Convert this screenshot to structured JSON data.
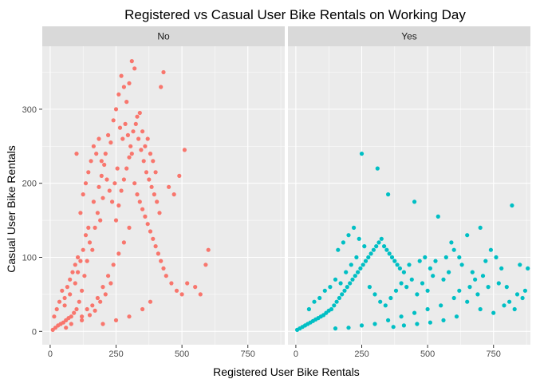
{
  "chart_data": {
    "type": "scatter",
    "title": "Registered vs Casual User Bike Rentals on Working Day",
    "xlabel": "Registered User Bike Rentals",
    "ylabel": "Casual User Bike Rentals",
    "facet_variable": "workingday",
    "xlim": [
      -30,
      890
    ],
    "ylim": [
      -18,
      385
    ],
    "x_ticks": [
      0,
      250,
      500,
      750
    ],
    "y_ticks": [
      0,
      100,
      200,
      300
    ],
    "grid": true,
    "legend": "none",
    "panels": [
      {
        "label": "No",
        "color": "#F8766D",
        "points": [
          [
            10,
            2
          ],
          [
            20,
            5
          ],
          [
            30,
            8
          ],
          [
            40,
            10
          ],
          [
            50,
            12
          ],
          [
            60,
            15
          ],
          [
            70,
            18
          ],
          [
            80,
            20
          ],
          [
            90,
            25
          ],
          [
            100,
            30
          ],
          [
            15,
            20
          ],
          [
            25,
            30
          ],
          [
            35,
            40
          ],
          [
            45,
            55
          ],
          [
            55,
            45
          ],
          [
            65,
            60
          ],
          [
            75,
            70
          ],
          [
            85,
            80
          ],
          [
            95,
            90
          ],
          [
            105,
            100
          ],
          [
            110,
            40
          ],
          [
            120,
            55
          ],
          [
            130,
            75
          ],
          [
            140,
            95
          ],
          [
            150,
            120
          ],
          [
            160,
            110
          ],
          [
            170,
            140
          ],
          [
            180,
            160
          ],
          [
            190,
            150
          ],
          [
            200,
            180
          ],
          [
            115,
            160
          ],
          [
            125,
            185
          ],
          [
            135,
            200
          ],
          [
            145,
            215
          ],
          [
            155,
            230
          ],
          [
            165,
            250
          ],
          [
            175,
            240
          ],
          [
            185,
            260
          ],
          [
            195,
            210
          ],
          [
            205,
            225
          ],
          [
            210,
            240
          ],
          [
            220,
            265
          ],
          [
            230,
            255
          ],
          [
            240,
            285
          ],
          [
            250,
            300
          ],
          [
            260,
            320
          ],
          [
            270,
            345
          ],
          [
            280,
            330
          ],
          [
            290,
            310
          ],
          [
            300,
            335
          ],
          [
            310,
            365
          ],
          [
            320,
            355
          ],
          [
            330,
            290
          ],
          [
            340,
            295
          ],
          [
            350,
            270
          ],
          [
            360,
            250
          ],
          [
            370,
            260
          ],
          [
            380,
            240
          ],
          [
            390,
            230
          ],
          [
            400,
            215
          ],
          [
            250,
            150
          ],
          [
            260,
            170
          ],
          [
            270,
            190
          ],
          [
            280,
            205
          ],
          [
            290,
            220
          ],
          [
            300,
            235
          ],
          [
            310,
            240
          ],
          [
            320,
            200
          ],
          [
            330,
            185
          ],
          [
            340,
            175
          ],
          [
            350,
            165
          ],
          [
            360,
            155
          ],
          [
            370,
            145
          ],
          [
            380,
            135
          ],
          [
            390,
            125
          ],
          [
            400,
            115
          ],
          [
            410,
            105
          ],
          [
            420,
            95
          ],
          [
            430,
            85
          ],
          [
            440,
            75
          ],
          [
            460,
            65
          ],
          [
            480,
            55
          ],
          [
            500,
            50
          ],
          [
            520,
            65
          ],
          [
            550,
            60
          ],
          [
            570,
            50
          ],
          [
            590,
            90
          ],
          [
            600,
            110
          ],
          [
            490,
            210
          ],
          [
            510,
            245
          ],
          [
            450,
            195
          ],
          [
            470,
            185
          ],
          [
            430,
            350
          ],
          [
            420,
            330
          ],
          [
            160,
            35
          ],
          [
            180,
            45
          ],
          [
            200,
            60
          ],
          [
            220,
            75
          ],
          [
            240,
            90
          ],
          [
            260,
            105
          ],
          [
            280,
            120
          ],
          [
            300,
            140
          ],
          [
            120,
            20
          ],
          [
            140,
            30
          ],
          [
            200,
            10
          ],
          [
            250,
            15
          ],
          [
            300,
            20
          ],
          [
            350,
            30
          ],
          [
            380,
            40
          ],
          [
            100,
            240
          ],
          [
            60,
            5
          ],
          [
            80,
            10
          ],
          [
            120,
            15
          ],
          [
            150,
            22
          ],
          [
            170,
            28
          ],
          [
            190,
            40
          ],
          [
            210,
            50
          ],
          [
            230,
            65
          ],
          [
            55,
            35
          ],
          [
            75,
            50
          ],
          [
            95,
            65
          ],
          [
            105,
            80
          ],
          [
            115,
            95
          ],
          [
            125,
            110
          ],
          [
            135,
            130
          ],
          [
            145,
            140
          ],
          [
            165,
            175
          ],
          [
            185,
            195
          ],
          [
            195,
            230
          ],
          [
            215,
            205
          ],
          [
            225,
            190
          ],
          [
            235,
            175
          ],
          [
            245,
            200
          ],
          [
            255,
            220
          ],
          [
            265,
            275
          ],
          [
            275,
            260
          ],
          [
            285,
            280
          ],
          [
            295,
            265
          ],
          [
            305,
            250
          ],
          [
            315,
            270
          ],
          [
            325,
            280
          ],
          [
            335,
            260
          ],
          [
            345,
            245
          ],
          [
            355,
            230
          ],
          [
            365,
            215
          ],
          [
            375,
            205
          ],
          [
            385,
            195
          ],
          [
            395,
            185
          ],
          [
            405,
            175
          ],
          [
            415,
            160
          ]
        ]
      },
      {
        "label": "Yes",
        "color": "#00BFC4",
        "points": [
          [
            5,
            2
          ],
          [
            15,
            4
          ],
          [
            25,
            6
          ],
          [
            35,
            8
          ],
          [
            45,
            10
          ],
          [
            55,
            12
          ],
          [
            65,
            14
          ],
          [
            75,
            16
          ],
          [
            85,
            18
          ],
          [
            95,
            20
          ],
          [
            105,
            22
          ],
          [
            115,
            25
          ],
          [
            125,
            28
          ],
          [
            135,
            30
          ],
          [
            145,
            35
          ],
          [
            155,
            40
          ],
          [
            165,
            45
          ],
          [
            175,
            50
          ],
          [
            185,
            55
          ],
          [
            195,
            60
          ],
          [
            205,
            65
          ],
          [
            215,
            70
          ],
          [
            225,
            75
          ],
          [
            235,
            80
          ],
          [
            245,
            85
          ],
          [
            255,
            90
          ],
          [
            265,
            95
          ],
          [
            275,
            100
          ],
          [
            285,
            105
          ],
          [
            295,
            110
          ],
          [
            305,
            115
          ],
          [
            315,
            120
          ],
          [
            325,
            125
          ],
          [
            335,
            115
          ],
          [
            345,
            110
          ],
          [
            355,
            105
          ],
          [
            365,
            100
          ],
          [
            375,
            95
          ],
          [
            385,
            90
          ],
          [
            395,
            85
          ],
          [
            250,
            240
          ],
          [
            310,
            220
          ],
          [
            350,
            185
          ],
          [
            450,
            175
          ],
          [
            540,
            155
          ],
          [
            600,
            110
          ],
          [
            620,
            100
          ],
          [
            650,
            130
          ],
          [
            700,
            140
          ],
          [
            720,
            95
          ],
          [
            740,
            110
          ],
          [
            760,
            100
          ],
          [
            780,
            85
          ],
          [
            800,
            60
          ],
          [
            820,
            170
          ],
          [
            850,
            90
          ],
          [
            880,
            85
          ],
          [
            750,
            25
          ],
          [
            700,
            30
          ],
          [
            650,
            40
          ],
          [
            600,
            45
          ],
          [
            550,
            35
          ],
          [
            500,
            30
          ],
          [
            450,
            25
          ],
          [
            400,
            20
          ],
          [
            350,
            15
          ],
          [
            300,
            10
          ],
          [
            250,
            8
          ],
          [
            200,
            5
          ],
          [
            150,
            4
          ],
          [
            420,
            60
          ],
          [
            440,
            70
          ],
          [
            460,
            50
          ],
          [
            480,
            65
          ],
          [
            500,
            55
          ],
          [
            520,
            75
          ],
          [
            560,
            70
          ],
          [
            580,
            80
          ],
          [
            620,
            55
          ],
          [
            660,
            60
          ],
          [
            680,
            70
          ],
          [
            710,
            75
          ],
          [
            730,
            60
          ],
          [
            770,
            65
          ],
          [
            790,
            35
          ],
          [
            810,
            40
          ],
          [
            830,
            30
          ],
          [
            840,
            50
          ],
          [
            860,
            45
          ],
          [
            870,
            55
          ],
          [
            50,
            30
          ],
          [
            70,
            40
          ],
          [
            90,
            45
          ],
          [
            110,
            55
          ],
          [
            130,
            60
          ],
          [
            150,
            70
          ],
          [
            170,
            65
          ],
          [
            190,
            80
          ],
          [
            210,
            90
          ],
          [
            230,
            100
          ],
          [
            160,
            110
          ],
          [
            180,
            120
          ],
          [
            200,
            130
          ],
          [
            220,
            140
          ],
          [
            240,
            125
          ],
          [
            260,
            115
          ],
          [
            280,
            60
          ],
          [
            300,
            50
          ],
          [
            320,
            40
          ],
          [
            340,
            35
          ],
          [
            360,
            45
          ],
          [
            380,
            55
          ],
          [
            400,
            65
          ],
          [
            410,
            80
          ],
          [
            430,
            90
          ],
          [
            470,
            95
          ],
          [
            490,
            100
          ],
          [
            510,
            85
          ],
          [
            530,
            95
          ],
          [
            570,
            100
          ],
          [
            590,
            120
          ],
          [
            630,
            90
          ],
          [
            670,
            80
          ],
          [
            690,
            50
          ],
          [
            610,
            20
          ],
          [
            560,
            15
          ],
          [
            510,
            12
          ],
          [
            460,
            10
          ],
          [
            410,
            8
          ],
          [
            370,
            6
          ]
        ]
      }
    ]
  }
}
